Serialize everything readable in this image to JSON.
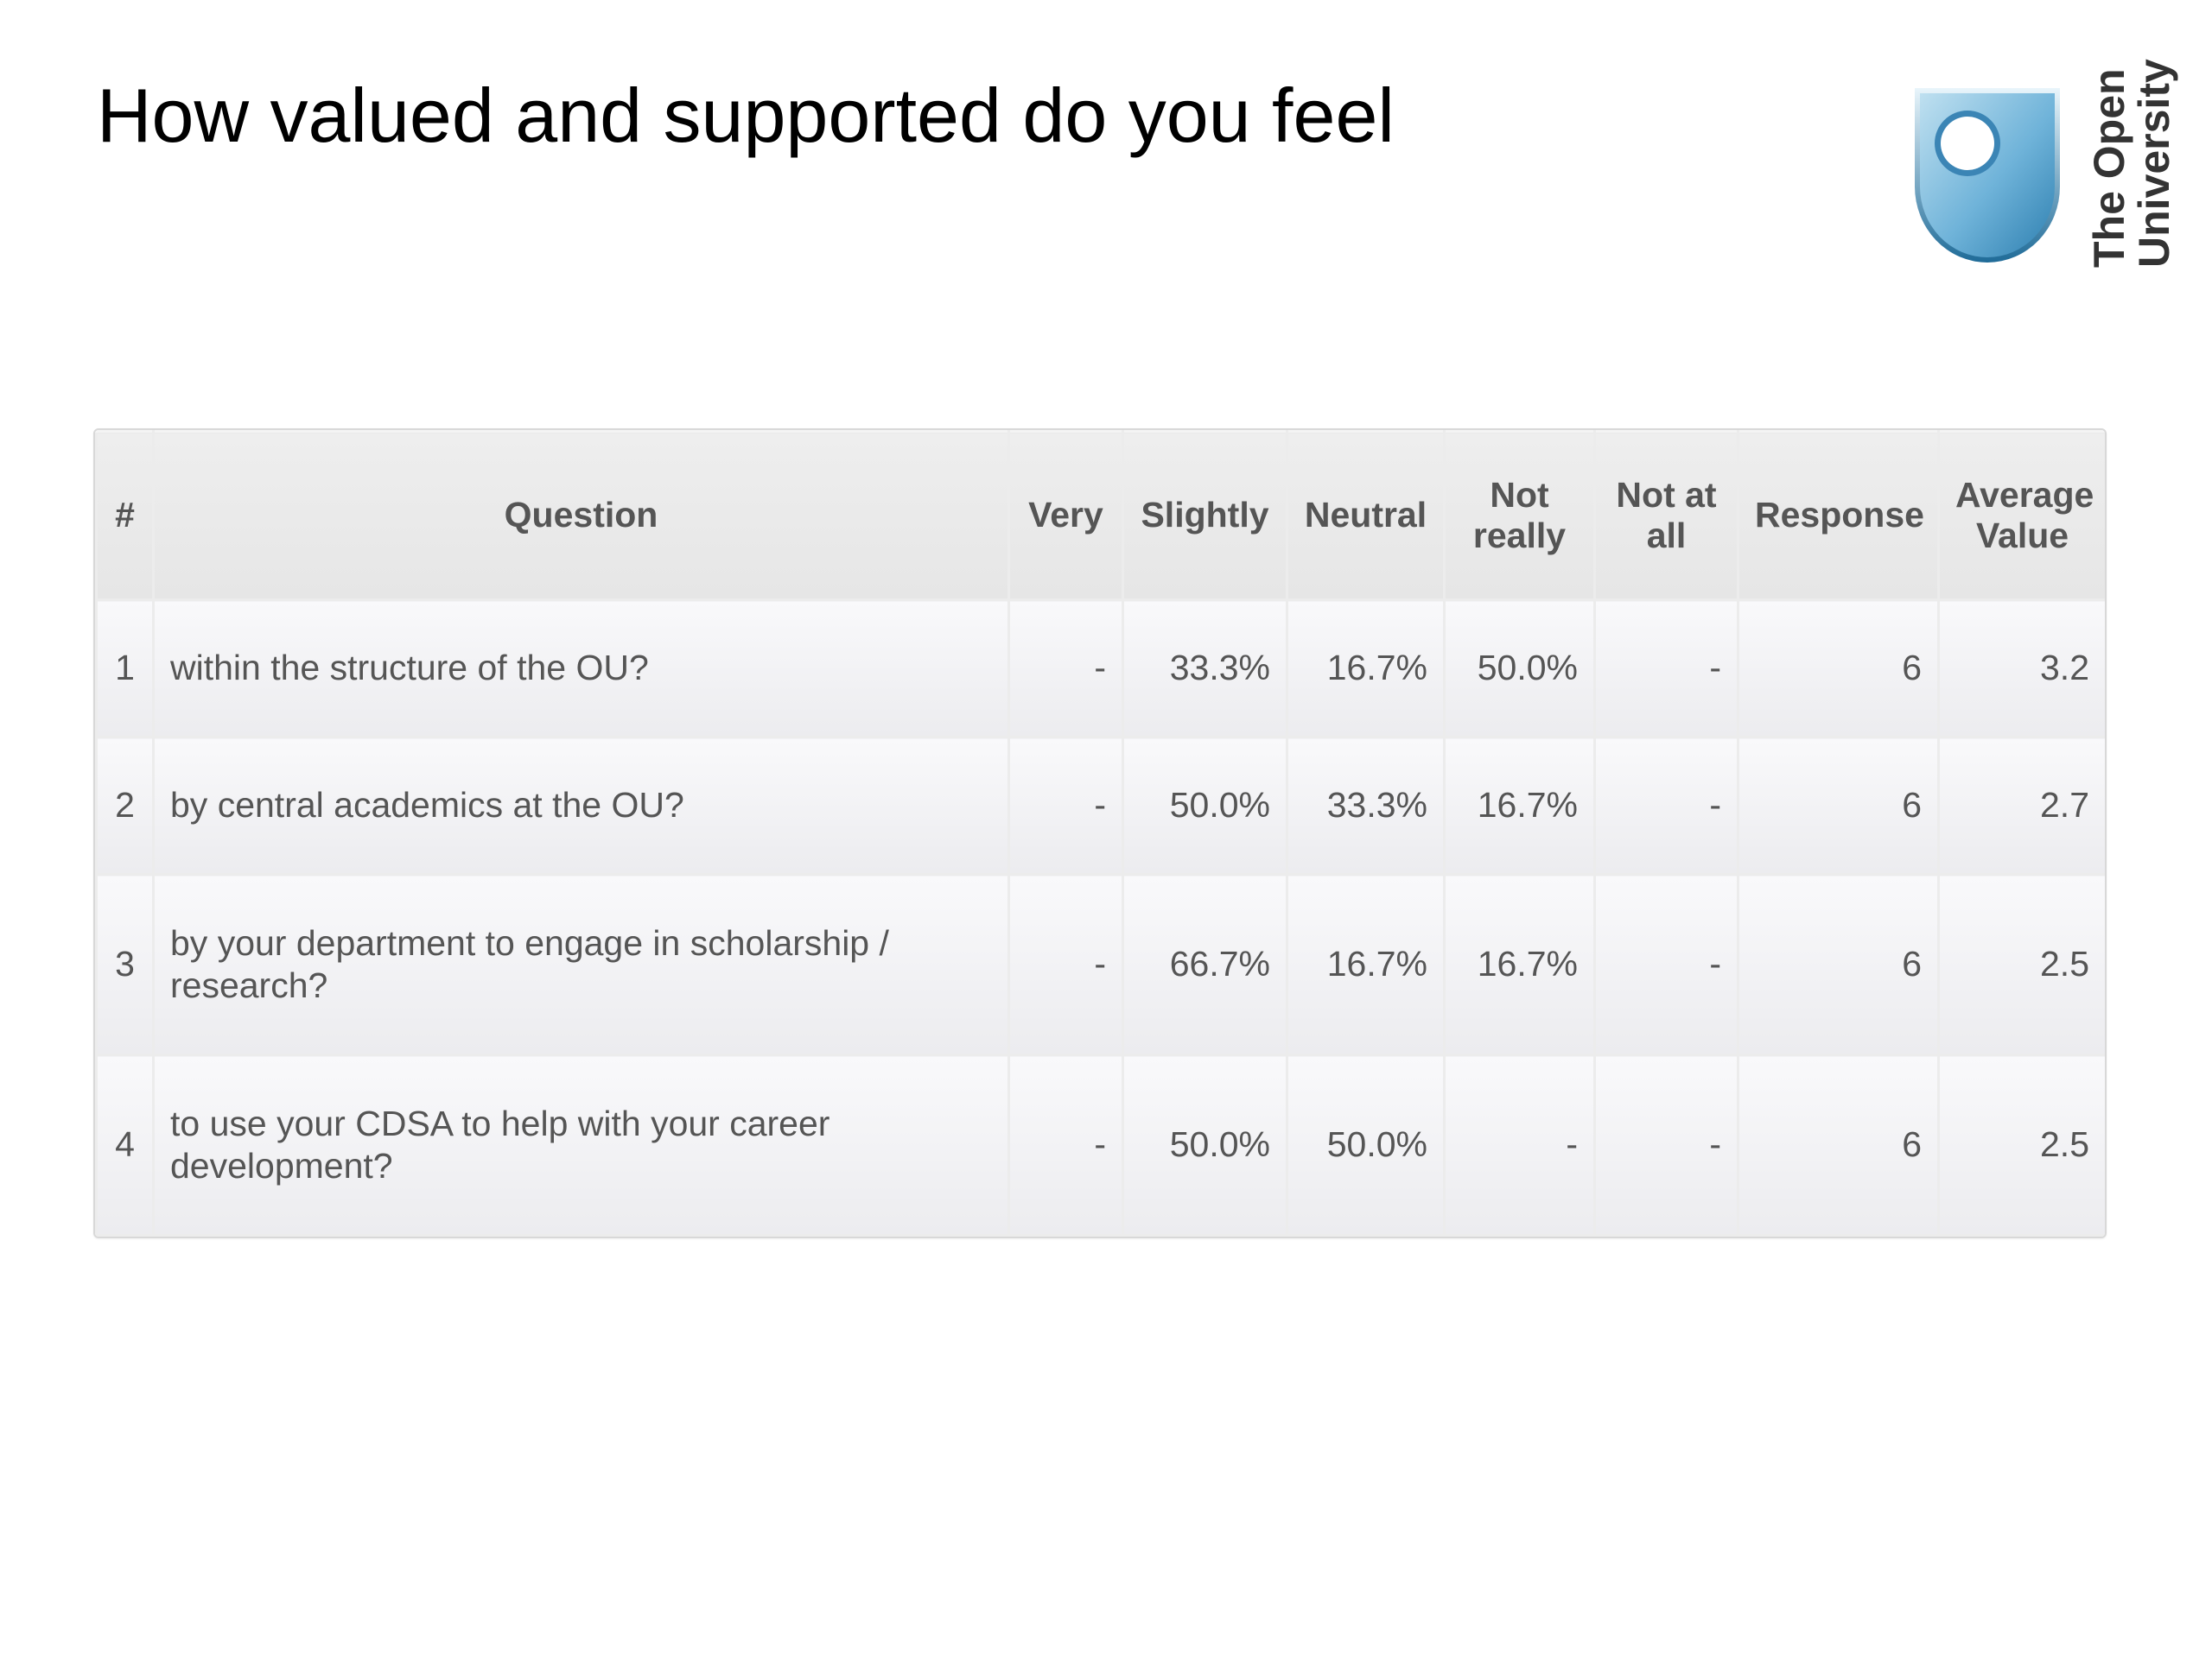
{
  "title": "How valued and supported do you feel",
  "logo": {
    "line1": "The Open",
    "line2": "University",
    "shield_color": "#4a9bc7"
  },
  "table": {
    "headers": {
      "num": "#",
      "question": "Question",
      "very": "Very",
      "slightly": "Slightly",
      "neutral": "Neutral",
      "not_really": "Not really",
      "not_at_all": "Not at all",
      "response": "Response",
      "average": "Average Value"
    },
    "rows": [
      {
        "num": "1",
        "question": "within the structure of the OU?",
        "very": "-",
        "slightly": "33.3%",
        "neutral": "16.7%",
        "not_really": "50.0%",
        "not_at_all": "-",
        "response": "6",
        "average": "3.2"
      },
      {
        "num": "2",
        "question": "by central academics at the OU?",
        "very": "-",
        "slightly": "50.0%",
        "neutral": "33.3%",
        "not_really": "16.7%",
        "not_at_all": "-",
        "response": "6",
        "average": "2.7"
      },
      {
        "num": "3",
        "question": "by your department to engage in scholarship / research?",
        "very": "-",
        "slightly": "66.7%",
        "neutral": "16.7%",
        "not_really": "16.7%",
        "not_at_all": "-",
        "response": "6",
        "average": "2.5"
      },
      {
        "num": "4",
        "question": "to use your CDSA to help with your career development?",
        "very": "-",
        "slightly": "50.0%",
        "neutral": "50.0%",
        "not_really": "-",
        "not_at_all": "-",
        "response": "6",
        "average": "2.5"
      }
    ]
  }
}
